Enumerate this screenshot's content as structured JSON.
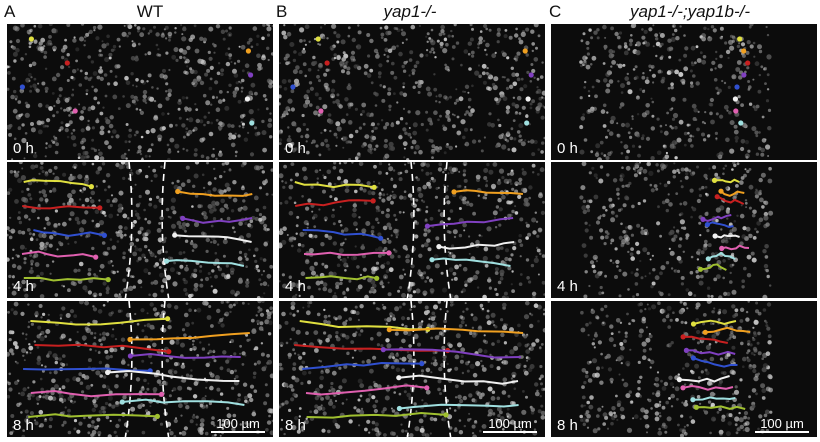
{
  "columns": [
    {
      "letter": "A",
      "title": "WT",
      "italic": false
    },
    {
      "letter": "B",
      "title": "yap1-/-",
      "italic": true
    },
    {
      "letter": "C",
      "title": "yap1-/-;yap1b-/-",
      "italic": true
    }
  ],
  "time_labels": [
    "0  h",
    "4  h",
    "8  h"
  ],
  "scale_bar_label": "100 µm",
  "track_colors": [
    "#e0e040",
    "#f0a020",
    "#c82020",
    "#8040c0",
    "#3050d0",
    "#f0f0f0",
    "#e060b0",
    "#a0e0e0",
    "#a0c030",
    "#c0c060"
  ]
}
